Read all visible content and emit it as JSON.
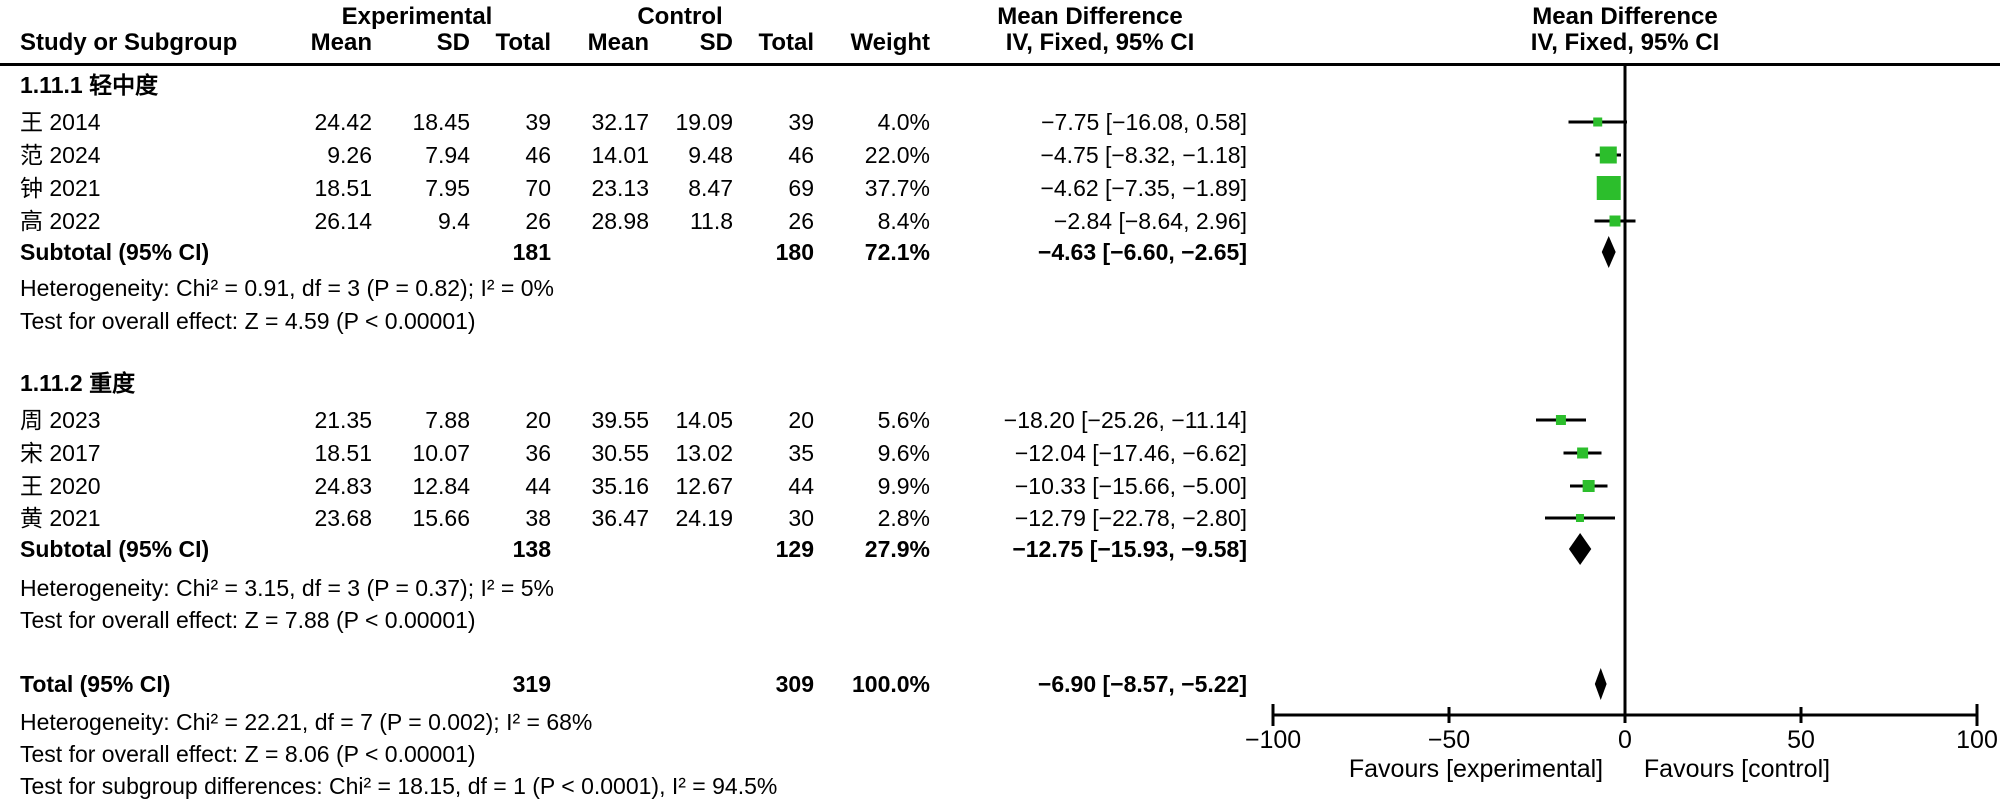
{
  "header": {
    "experimental": "Experimental",
    "control": "Control",
    "mean_difference": "Mean Difference",
    "study_or_subgroup": "Study or Subgroup",
    "mean": "Mean",
    "sd": "SD",
    "total": "Total",
    "weight": "Weight",
    "effect_method": "IV, Fixed, 95% CI"
  },
  "chart_data": {
    "type": "forest",
    "effect_measure": "Mean Difference",
    "method": "IV, Fixed, 95% CI",
    "marker_color": "#2CBE2C",
    "line_color": "#000000",
    "axis": {
      "min": -100,
      "max": 100,
      "ticks": [
        -100,
        -50,
        0,
        50,
        100
      ],
      "tick_labels": [
        "−100",
        "−50",
        "0",
        "50",
        "100"
      ],
      "favours_left": "Favours [experimental]",
      "favours_right": "Favours [control]"
    },
    "subgroups": [
      {
        "title": "1.11.1 轻中度",
        "studies": [
          {
            "name": "王 2014",
            "exp_mean": 24.42,
            "exp_sd": 18.45,
            "exp_total": 39,
            "ctrl_mean": 32.17,
            "ctrl_sd": 19.09,
            "ctrl_total": 39,
            "weight": "4.0%",
            "weight_value": 4.0,
            "md": -7.75,
            "ci_low": -16.08,
            "ci_high": 0.58,
            "ci_text": "−7.75 [−16.08, 0.58]"
          },
          {
            "name": "范 2024",
            "exp_mean": 9.26,
            "exp_sd": 7.94,
            "exp_total": 46,
            "ctrl_mean": 14.01,
            "ctrl_sd": 9.48,
            "ctrl_total": 46,
            "weight": "22.0%",
            "weight_value": 22.0,
            "md": -4.75,
            "ci_low": -8.32,
            "ci_high": -1.18,
            "ci_text": "−4.75 [−8.32, −1.18]"
          },
          {
            "name": "钟 2021",
            "exp_mean": 18.51,
            "exp_sd": 7.95,
            "exp_total": 70,
            "ctrl_mean": 23.13,
            "ctrl_sd": 8.47,
            "ctrl_total": 69,
            "weight": "37.7%",
            "weight_value": 37.7,
            "md": -4.62,
            "ci_low": -7.35,
            "ci_high": -1.89,
            "ci_text": "−4.62 [−7.35, −1.89]"
          },
          {
            "name": "高 2022",
            "exp_mean": 26.14,
            "exp_sd": 9.4,
            "exp_total": 26,
            "ctrl_mean": 28.98,
            "ctrl_sd": 11.8,
            "ctrl_total": 26,
            "weight": "8.4%",
            "weight_value": 8.4,
            "md": -2.84,
            "ci_low": -8.64,
            "ci_high": 2.96,
            "ci_text": "−2.84 [−8.64, 2.96]"
          }
        ],
        "subtotal": {
          "label": "Subtotal (95% CI)",
          "exp_total": 181,
          "ctrl_total": 180,
          "weight": "72.1%",
          "md": -4.63,
          "ci_low": -6.6,
          "ci_high": -2.65,
          "ci_text": "−4.63 [−6.60, −2.65]"
        },
        "heterogeneity": "Heterogeneity: Chi² = 0.91, df = 3 (P = 0.82); I² = 0%",
        "overall_effect": "Test for overall effect: Z = 4.59 (P < 0.00001)"
      },
      {
        "title": "1.11.2 重度",
        "studies": [
          {
            "name": "周 2023",
            "exp_mean": 21.35,
            "exp_sd": 7.88,
            "exp_total": 20,
            "ctrl_mean": 39.55,
            "ctrl_sd": 14.05,
            "ctrl_total": 20,
            "weight": "5.6%",
            "weight_value": 5.6,
            "md": -18.2,
            "ci_low": -25.26,
            "ci_high": -11.14,
            "ci_text": "−18.20 [−25.26, −11.14]"
          },
          {
            "name": "宋 2017",
            "exp_mean": 18.51,
            "exp_sd": 10.07,
            "exp_total": 36,
            "ctrl_mean": 30.55,
            "ctrl_sd": 13.02,
            "ctrl_total": 35,
            "weight": "9.6%",
            "weight_value": 9.6,
            "md": -12.04,
            "ci_low": -17.46,
            "ci_high": -6.62,
            "ci_text": "−12.04 [−17.46, −6.62]"
          },
          {
            "name": "王 2020",
            "exp_mean": 24.83,
            "exp_sd": 12.84,
            "exp_total": 44,
            "ctrl_mean": 35.16,
            "ctrl_sd": 12.67,
            "ctrl_total": 44,
            "weight": "9.9%",
            "weight_value": 9.9,
            "md": -10.33,
            "ci_low": -15.66,
            "ci_high": -5.0,
            "ci_text": "−10.33 [−15.66, −5.00]"
          },
          {
            "name": "黄 2021",
            "exp_mean": 23.68,
            "exp_sd": 15.66,
            "exp_total": 38,
            "ctrl_mean": 36.47,
            "ctrl_sd": 24.19,
            "ctrl_total": 30,
            "weight": "2.8%",
            "weight_value": 2.8,
            "md": -12.79,
            "ci_low": -22.78,
            "ci_high": -2.8,
            "ci_text": "−12.79 [−22.78, −2.80]"
          }
        ],
        "subtotal": {
          "label": "Subtotal (95% CI)",
          "exp_total": 138,
          "ctrl_total": 129,
          "weight": "27.9%",
          "md": -12.75,
          "ci_low": -15.93,
          "ci_high": -9.58,
          "ci_text": "−12.75 [−15.93, −9.58]"
        },
        "heterogeneity": "Heterogeneity: Chi² = 3.15, df = 3 (P = 0.37); I² = 5%",
        "overall_effect": "Test for overall effect: Z = 7.88 (P < 0.00001)"
      }
    ],
    "total": {
      "label": "Total (95% CI)",
      "exp_total": 319,
      "ctrl_total": 309,
      "weight": "100.0%",
      "md": -6.9,
      "ci_low": -8.57,
      "ci_high": -5.22,
      "ci_text": "−6.90 [−8.57, −5.22]",
      "heterogeneity": "Heterogeneity: Chi² = 22.21, df = 7 (P = 0.002); I² = 68%",
      "overall_effect": "Test for overall effect: Z = 8.06 (P < 0.00001)",
      "subgroup_differences": "Test for subgroup differences: Chi² = 18.15, df = 1 (P < 0.0001), I² = 94.5%"
    }
  }
}
